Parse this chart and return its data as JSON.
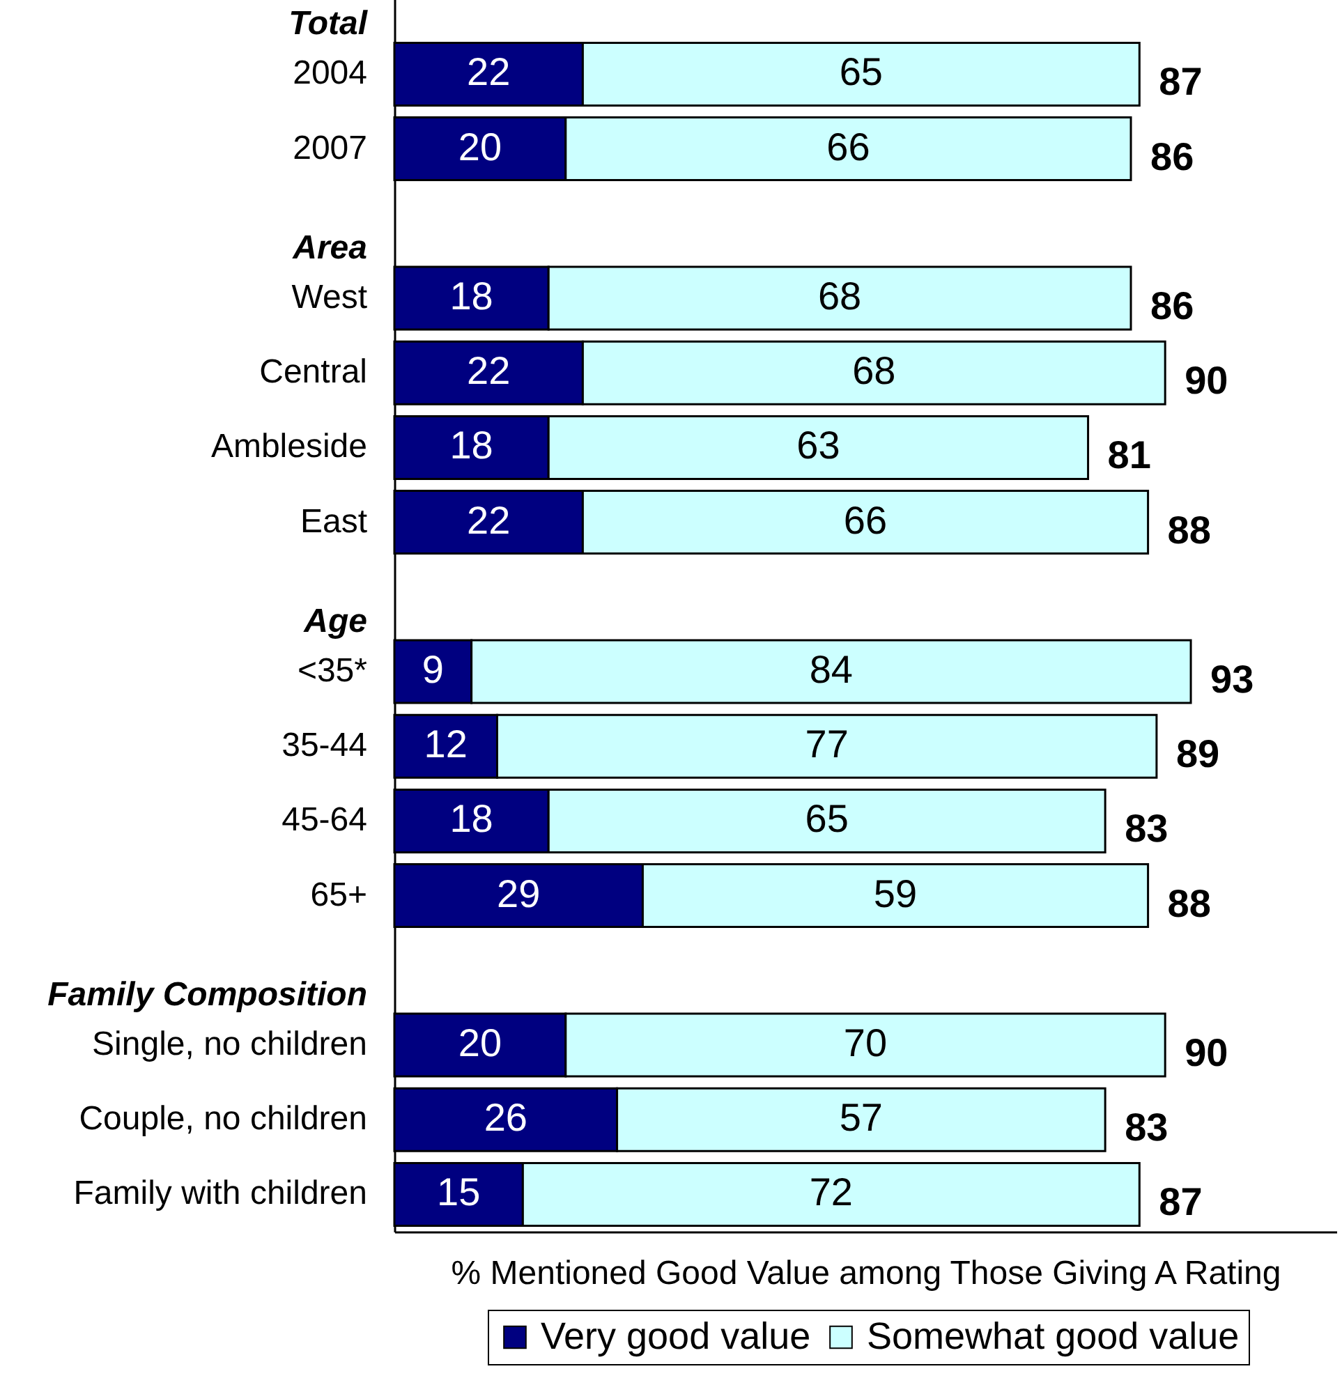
{
  "chart_data": {
    "type": "bar",
    "orientation": "horizontal",
    "stacked": true,
    "xlabel": "% Mentioned Good Value among Those Giving A Rating",
    "categories": [
      "Total",
      "2004",
      "2007",
      "Area",
      "West",
      "Central",
      "Ambleside",
      "East",
      "Age",
      "<35*",
      "35-44",
      "45-64",
      "65+",
      "Family Composition",
      "Single, no children",
      "Couple, no children",
      "Family with children"
    ],
    "series": [
      {
        "name": "Very good value",
        "color": "#000080",
        "values": [
          null,
          22,
          20,
          null,
          18,
          22,
          18,
          22,
          null,
          9,
          12,
          18,
          29,
          null,
          20,
          26,
          15
        ]
      },
      {
        "name": "Somewhat good value",
        "color": "#ccffff",
        "values": [
          null,
          65,
          66,
          null,
          68,
          68,
          63,
          66,
          null,
          84,
          77,
          65,
          59,
          null,
          70,
          57,
          72
        ]
      }
    ],
    "totals": [
      null,
      "87",
      "86",
      null,
      "86",
      "90",
      "81",
      "88",
      null,
      "93",
      "89",
      "83",
      "88",
      null,
      "90",
      "83",
      "87"
    ],
    "data_labels": true,
    "xlim": [
      0,
      110
    ],
    "tick_labels": "y",
    "legend": "bottom"
  }
}
